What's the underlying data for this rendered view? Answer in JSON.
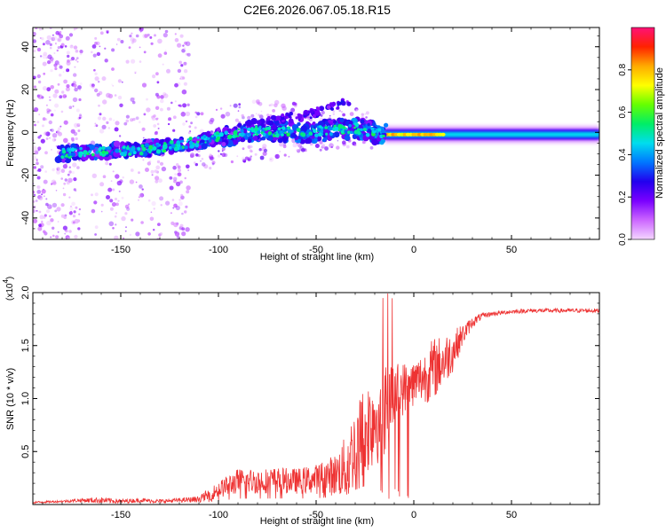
{
  "title": "C2E6.2026.067.05.18.R15",
  "chart_data": [
    {
      "type": "heatmap",
      "xlabel": "Height of straight line (km)",
      "ylabel": "Frequency (Hz)",
      "xlim": [
        -195,
        95
      ],
      "ylim": [
        -50,
        49
      ],
      "x_ticks": [
        -150,
        -100,
        -50,
        0,
        50
      ],
      "y_ticks": [
        -40,
        -20,
        0,
        20,
        40
      ],
      "colorbar": {
        "label": "Normalized spectral amplitude",
        "range": [
          0.0,
          1.0
        ],
        "ticks": [
          0.0,
          0.2,
          0.4,
          0.6,
          0.8
        ],
        "tick_labels": [
          "0.0",
          "0.2",
          "0.4",
          "0.6",
          "0.8"
        ],
        "stops": [
          "#f4d6ff",
          "#cc66ff",
          "#7a00ff",
          "#2200ee",
          "#0077ff",
          "#00ddee",
          "#00ee66",
          "#66ff00",
          "#ffff00",
          "#ffaa00",
          "#ff2200",
          "#ff1177"
        ]
      },
      "ridge": [
        {
          "x": -180,
          "y": -10
        },
        {
          "x": -160,
          "y": -9
        },
        {
          "x": -140,
          "y": -8
        },
        {
          "x": -120,
          "y": -6
        },
        {
          "x": -100,
          "y": -2
        },
        {
          "x": -80,
          "y": 1
        },
        {
          "x": -60,
          "y": 0
        },
        {
          "x": -40,
          "y": 1
        },
        {
          "x": -30,
          "y": 2
        },
        {
          "x": -15,
          "y": -1
        },
        {
          "x": 0,
          "y": -1
        },
        {
          "x": 20,
          "y": -1
        },
        {
          "x": 50,
          "y": -1
        },
        {
          "x": 95,
          "y": -1
        }
      ],
      "secondary_branch": [
        {
          "x": -75,
          "y": 5
        },
        {
          "x": -55,
          "y": 8
        },
        {
          "x": -45,
          "y": 11
        },
        {
          "x": -35,
          "y": 14
        }
      ],
      "continuous_band": {
        "x_start": -15,
        "x_end": 95,
        "y": -1,
        "amplitude": 0.45
      },
      "peak_band": {
        "x_start": -15,
        "x_end": 15,
        "y": -1,
        "amplitude": 0.85
      }
    },
    {
      "type": "line",
      "xlabel": "Height of straight line (km)",
      "ylabel": "SNR (10 * v/v)",
      "y_multiplier": "(x10",
      "y_multiplier_exp": "4",
      "y_multiplier_close": ")",
      "xlim": [
        -195,
        95
      ],
      "ylim": [
        0,
        2.0
      ],
      "x_ticks": [
        -150,
        -100,
        -50,
        0,
        50
      ],
      "y_ticks": [
        0.5,
        1.0,
        1.5,
        2.0
      ],
      "y_tick_labels": [
        "0.5",
        "1.0",
        "1.5",
        "2.0"
      ],
      "color": "#ee3333",
      "series": [
        {
          "name": "SNR",
          "x": [
            -195,
            -180,
            -170,
            -160,
            -150,
            -140,
            -130,
            -120,
            -110,
            -104,
            -100,
            -90,
            -80,
            -70,
            -60,
            -50,
            -40,
            -35,
            -30,
            -25,
            -20,
            -15,
            -10,
            -5,
            0,
            5,
            10,
            15,
            20,
            25,
            30,
            35,
            40,
            50,
            60,
            70,
            80,
            95
          ],
          "values": [
            0.02,
            0.03,
            0.04,
            0.04,
            0.03,
            0.04,
            0.03,
            0.04,
            0.05,
            0.1,
            0.14,
            0.22,
            0.22,
            0.23,
            0.22,
            0.24,
            0.28,
            0.35,
            0.55,
            0.7,
            0.85,
            0.95,
            1.05,
            1.1,
            1.15,
            1.2,
            1.28,
            1.35,
            1.45,
            1.6,
            1.72,
            1.78,
            1.8,
            1.82,
            1.83,
            1.83,
            1.83,
            1.83
          ],
          "noise": [
            0.01,
            0.01,
            0.02,
            0.03,
            0.02,
            0.02,
            0.02,
            0.02,
            0.03,
            0.06,
            0.08,
            0.12,
            0.12,
            0.12,
            0.12,
            0.14,
            0.2,
            0.3,
            0.4,
            0.45,
            0.5,
            0.5,
            0.3,
            0.25,
            0.22,
            0.25,
            0.3,
            0.25,
            0.2,
            0.1,
            0.05,
            0.03,
            0.02,
            0.02,
            0.02,
            0.02,
            0.02,
            0.02
          ]
        }
      ]
    }
  ]
}
